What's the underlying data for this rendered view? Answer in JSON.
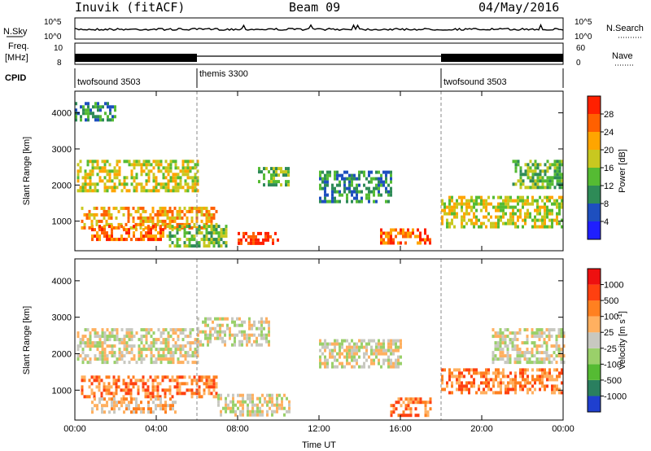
{
  "header": {
    "station": "Inuvik (fitACF)",
    "beam": "Beam 09",
    "date": "04/May/2016"
  },
  "top_panels": {
    "nsky_label": "N.Sky",
    "nsearch_label": "N.Search",
    "nsky_left_ticks": [
      "10^5",
      "10^0"
    ],
    "nsky_right_ticks": [
      "10^5",
      "10^0"
    ],
    "freq_label_1": "Freq.",
    "freq_label_2": "[MHz]",
    "freq_ticks": [
      "10",
      "8"
    ],
    "nave_label": "Nave",
    "nave_ticks": [
      "60",
      "0"
    ],
    "cpid_label": "CPID",
    "cpid_segments": [
      {
        "name": "twofsound 3503",
        "start_hour": 0,
        "end_hour": 6
      },
      {
        "name": "themis 3300",
        "start_hour": 6,
        "end_hour": 18
      },
      {
        "name": "twofsound 3503",
        "start_hour": 18,
        "end_hour": 24
      }
    ]
  },
  "axes": {
    "ylabel": "Slant Range [km]",
    "xlabel": "Time UT",
    "x_ticks": [
      "00:00",
      "04:00",
      "08:00",
      "12:00",
      "16:00",
      "20:00",
      "00:00"
    ],
    "y_ticks": [
      "1000",
      "2000",
      "3000",
      "4000"
    ]
  },
  "colorbars": {
    "power": {
      "label": "Power [dB]",
      "ticks": [
        "4",
        "8",
        "12",
        "16",
        "20",
        "24",
        "28"
      ],
      "colors": [
        "#1f1fff",
        "#1e4fbf",
        "#2e8b57",
        "#55bb33",
        "#c8c820",
        "#ffa500",
        "#ff6000",
        "#ff2000"
      ]
    },
    "velocity": {
      "label": "Velocity [m s",
      "label_sup": "-1",
      "label_end": "]",
      "ticks": [
        "1000",
        "500",
        "100",
        "25",
        "-25",
        "-100",
        "-500",
        "-1000"
      ],
      "colors": [
        "#1f3fcf",
        "#2a7f5f",
        "#55bb33",
        "#9ad06a",
        "#c8c8c0",
        "#ffb060",
        "#ff8020",
        "#ff4010",
        "#ee1010"
      ]
    }
  },
  "chart_data": {
    "type": "heatmap",
    "x_range_hours": [
      0,
      24
    ],
    "y_range_km": [
      180,
      4600
    ],
    "power_regions": [
      {
        "t0": 0.1,
        "t1": 6.0,
        "r0": 1800,
        "r1": 2700,
        "level": 4
      },
      {
        "t0": 0.3,
        "t1": 7.0,
        "r0": 800,
        "r1": 1400,
        "level": 5
      },
      {
        "t0": 0.8,
        "t1": 4.5,
        "r0": 500,
        "r1": 900,
        "level": 6
      },
      {
        "t0": 4.5,
        "t1": 7.5,
        "r0": 300,
        "r1": 900,
        "level": 3
      },
      {
        "t0": 8.0,
        "t1": 10.0,
        "r0": 350,
        "r1": 700,
        "level": 7
      },
      {
        "t0": 9.0,
        "t1": 10.5,
        "r0": 2000,
        "r1": 2500,
        "level": 3
      },
      {
        "t0": 12.0,
        "t1": 15.5,
        "r0": 1500,
        "r1": 2400,
        "level": 2
      },
      {
        "t0": 15.0,
        "t1": 17.5,
        "r0": 350,
        "r1": 800,
        "level": 6
      },
      {
        "t0": 18.0,
        "t1": 24.0,
        "r0": 800,
        "r1": 1700,
        "level": 4
      },
      {
        "t0": 21.5,
        "t1": 24.0,
        "r0": 1900,
        "r1": 2700,
        "level": 3
      },
      {
        "t0": 0.0,
        "t1": 2.0,
        "r0": 3800,
        "r1": 4300,
        "level": 2
      }
    ],
    "velocity_regions": [
      {
        "t0": 0.1,
        "t1": 6.0,
        "r0": 1800,
        "r1": 2700,
        "level": 4
      },
      {
        "t0": 0.3,
        "t1": 7.0,
        "r0": 800,
        "r1": 1400,
        "level": 6
      },
      {
        "t0": 0.8,
        "t1": 5.0,
        "r0": 400,
        "r1": 800,
        "level": 5
      },
      {
        "t0": 7.0,
        "t1": 10.5,
        "r0": 300,
        "r1": 900,
        "level": 4
      },
      {
        "t0": 6.0,
        "t1": 9.5,
        "r0": 2200,
        "r1": 3000,
        "level": 4
      },
      {
        "t0": 12.0,
        "t1": 16.0,
        "r0": 1600,
        "r1": 2400,
        "level": 4
      },
      {
        "t0": 15.5,
        "t1": 17.5,
        "r0": 350,
        "r1": 800,
        "level": 6
      },
      {
        "t0": 18.0,
        "t1": 24.0,
        "r0": 900,
        "r1": 1600,
        "level": 6
      },
      {
        "t0": 20.5,
        "t1": 24.0,
        "r0": 1800,
        "r1": 2700,
        "level": 4
      }
    ]
  }
}
